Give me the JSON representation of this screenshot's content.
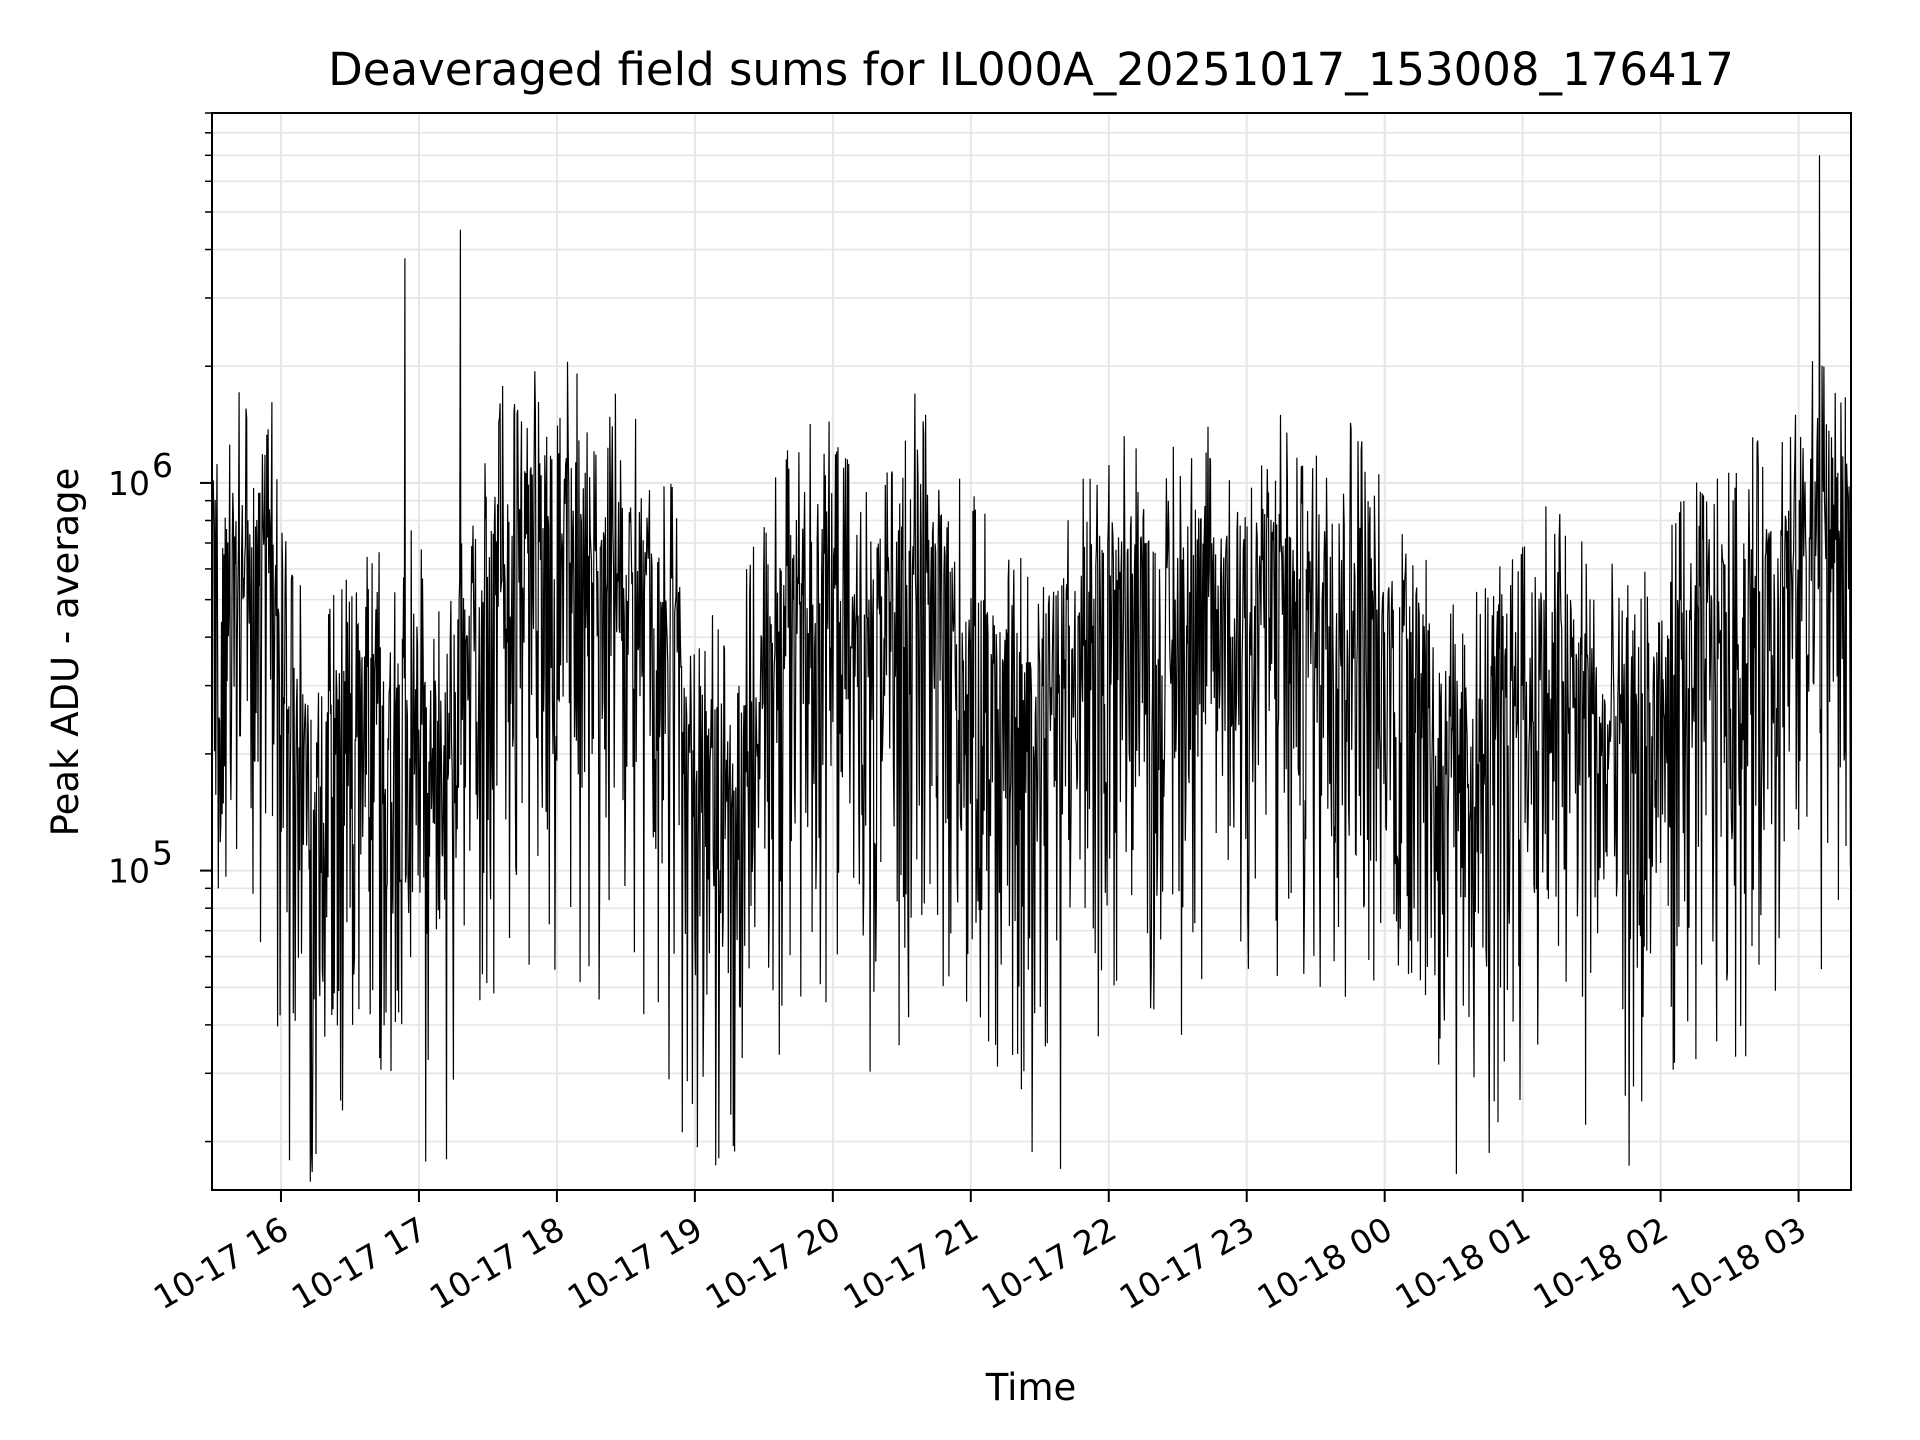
{
  "chart_data": {
    "type": "line",
    "title": "Deaveraged field sums for IL000A_20251017_153008_176417",
    "xlabel": "Time",
    "ylabel": "Peak ADU - average",
    "yscale": "log",
    "ylim": [
      15000,
      9000000
    ],
    "xlim_hours": [
      15.5,
      27.38
    ],
    "grid": true,
    "colors": {
      "line": "#000000",
      "grid": "#e6e6e6",
      "axis": "#000000"
    },
    "x_ticks": [
      {
        "hour": 16,
        "label": "10-17 16"
      },
      {
        "hour": 17,
        "label": "10-17 17"
      },
      {
        "hour": 18,
        "label": "10-17 18"
      },
      {
        "hour": 19,
        "label": "10-17 19"
      },
      {
        "hour": 20,
        "label": "10-17 20"
      },
      {
        "hour": 21,
        "label": "10-17 21"
      },
      {
        "hour": 22,
        "label": "10-17 22"
      },
      {
        "hour": 23,
        "label": "10-17 23"
      },
      {
        "hour": 24,
        "label": "10-18 00"
      },
      {
        "hour": 25,
        "label": "10-18 01"
      },
      {
        "hour": 26,
        "label": "10-18 02"
      },
      {
        "hour": 27,
        "label": "10-18 03"
      }
    ],
    "y_ticks": [
      {
        "value": 100000,
        "base": "10",
        "exp": "5"
      },
      {
        "value": 1000000,
        "base": "10",
        "exp": "6"
      }
    ],
    "series": [
      {
        "name": "Peak ADU - average",
        "x_hours": [
          15.5,
          15.6,
          15.7,
          15.8,
          15.9,
          16.0,
          16.1,
          16.2,
          16.3,
          16.4,
          16.5,
          16.6,
          16.7,
          16.8,
          16.9,
          17.0,
          17.1,
          17.2,
          17.3,
          17.4,
          17.5,
          17.6,
          17.7,
          17.8,
          17.9,
          18.0,
          18.2,
          18.4,
          18.6,
          18.8,
          19.0,
          19.2,
          19.4,
          19.6,
          19.8,
          20.0,
          20.2,
          20.4,
          20.6,
          20.8,
          21.0,
          21.2,
          21.4,
          21.6,
          21.8,
          22.0,
          22.2,
          22.4,
          22.6,
          22.8,
          23.0,
          23.2,
          23.4,
          23.6,
          23.8,
          24.0,
          24.2,
          24.4,
          24.6,
          24.8,
          25.0,
          25.2,
          25.4,
          25.6,
          25.8,
          26.0,
          26.2,
          26.4,
          26.6,
          26.8,
          27.0,
          27.1,
          27.15,
          27.2,
          27.3,
          27.38
        ],
        "y": [
          600000,
          450000,
          700000,
          380000,
          900000,
          250000,
          200000,
          150000,
          120000,
          200000,
          180000,
          220000,
          300000,
          150000,
          260000,
          220000,
          180000,
          160000,
          250000,
          300000,
          400000,
          600000,
          500000,
          700000,
          650000,
          700000,
          600000,
          550000,
          500000,
          350000,
          180000,
          150000,
          200000,
          350000,
          500000,
          450000,
          300000,
          350000,
          600000,
          400000,
          300000,
          250000,
          200000,
          300000,
          350000,
          400000,
          450000,
          350000,
          500000,
          400000,
          450000,
          500000,
          400000,
          450000,
          500000,
          300000,
          350000,
          200000,
          150000,
          200000,
          300000,
          300000,
          250000,
          200000,
          180000,
          250000,
          300000,
          350000,
          400000,
          450000,
          500000,
          700000,
          600000,
          800000,
          650000,
          700000
        ],
        "notable_peaks": [
          {
            "hour": 16.9,
            "value": 3800000
          },
          {
            "hour": 17.3,
            "value": 4500000
          },
          {
            "hour": 27.15,
            "value": 7000000
          }
        ],
        "notable_dips": [
          {
            "hour": 17.2,
            "value": 18000
          },
          {
            "hour": 21.65,
            "value": 17000
          },
          {
            "hour": 24.52,
            "value": 16500
          }
        ]
      }
    ]
  }
}
